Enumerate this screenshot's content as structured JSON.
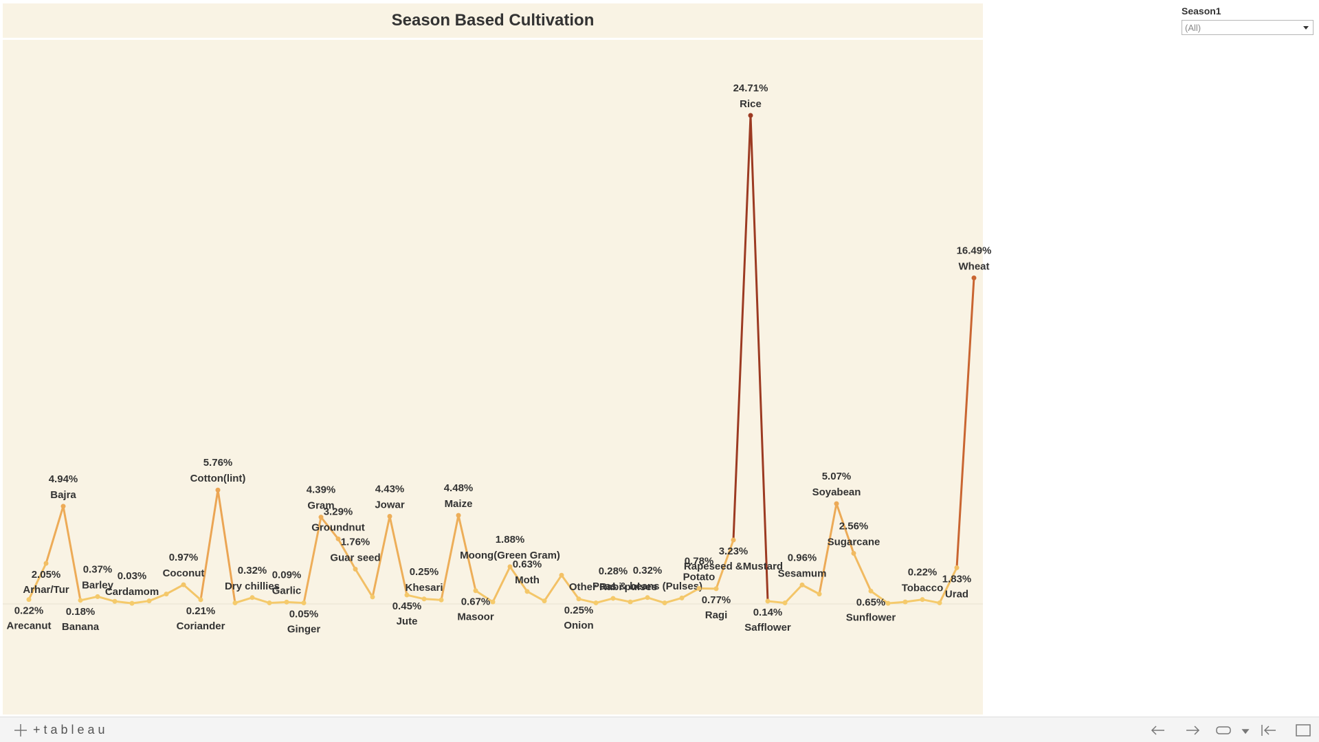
{
  "header": {
    "title": "Season Based Cultivation"
  },
  "filter": {
    "label": "Season1",
    "value": "(All)"
  },
  "footer": {
    "logo": "+tableau"
  },
  "chart_data": {
    "type": "line",
    "categories": [
      "Arecanut",
      "Arhar/Tur",
      "Bajra",
      "Banana",
      "Barley",
      null,
      "Cardamom",
      null,
      null,
      "Coconut",
      "Coriander",
      "Cotton(lint)",
      null,
      "Dry chillies",
      null,
      "Garlic",
      "Ginger",
      "Gram",
      "Groundnut",
      "Guar seed",
      null,
      "Jowar",
      "Jute",
      "Khesari",
      null,
      "Maize",
      "Masoor",
      null,
      "Moong(Green Gram)",
      "Moth",
      null,
      null,
      "Onion",
      null,
      "Other Rabi pulses",
      null,
      "Peas & beans (Pulses)",
      null,
      null,
      "Potato",
      "Ragi",
      "Rapeseed &Mustard",
      "Rice",
      "Safflower",
      null,
      "Sesamum",
      null,
      "Soyabean",
      "Sugarcane",
      "Sunflower",
      null,
      null,
      "Tobacco",
      null,
      "Urad",
      "Wheat"
    ],
    "values": [
      0.22,
      2.05,
      4.94,
      0.18,
      0.37,
      0.13,
      0.03,
      0.15,
      0.5,
      0.97,
      0.21,
      5.76,
      0.05,
      0.32,
      0.05,
      0.09,
      0.05,
      4.39,
      3.29,
      1.76,
      0.35,
      4.43,
      0.45,
      0.25,
      0.2,
      4.48,
      0.67,
      0.1,
      1.88,
      0.63,
      0.15,
      1.45,
      0.25,
      0.05,
      0.28,
      0.1,
      0.32,
      0.05,
      0.3,
      0.78,
      0.77,
      3.23,
      24.71,
      0.14,
      0.05,
      0.96,
      0.5,
      5.07,
      2.56,
      0.65,
      0.03,
      0.1,
      0.22,
      0.05,
      1.83,
      16.49
    ],
    "value_labels": [
      "0.22%",
      "2.05%",
      "4.94%",
      "0.18%",
      "0.37%",
      null,
      "0.03%",
      null,
      null,
      "0.97%",
      "0.21%",
      "5.76%",
      null,
      "0.32%",
      null,
      "0.09%",
      "0.05%",
      "4.39%",
      "3.29%",
      "1.76%",
      null,
      "4.43%",
      "0.45%",
      "0.25%",
      null,
      "4.48%",
      "0.67%",
      null,
      "1.88%",
      "0.63%",
      null,
      null,
      "0.25%",
      null,
      "0.28%",
      null,
      "0.32%",
      null,
      null,
      "0.78%",
      "0.77%",
      "3.23%",
      "24.71%",
      "0.14%",
      null,
      "0.96%",
      null,
      "5.07%",
      "2.56%",
      "0.65%",
      null,
      null,
      "0.22%",
      null,
      "1.83%",
      "16.49%"
    ],
    "color_scale": [
      "#f5cb6c",
      "#e07a38",
      "#9c3a22"
    ]
  }
}
